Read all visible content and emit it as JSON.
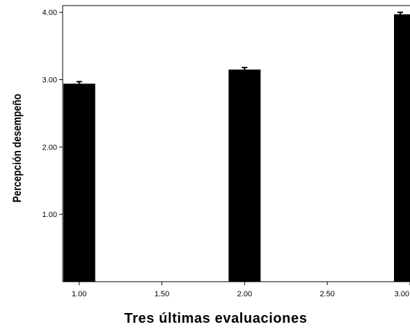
{
  "chart_data": {
    "type": "bar",
    "title": "",
    "xlabel": "Tres últimas evaluaciones",
    "ylabel": "Percepción desempeño",
    "x": [
      1.0,
      2.0,
      3.0
    ],
    "values": [
      2.94,
      3.15,
      3.97
    ],
    "error_upper": [
      2.97,
      3.18,
      4.0
    ],
    "xlim": [
      0.9,
      3.0
    ],
    "ylim": [
      0,
      4.1
    ],
    "x_ticks": [
      1.0,
      1.5,
      2.0,
      2.5,
      3.0
    ],
    "x_tick_labels": [
      "1.00",
      "1.50",
      "2.00",
      "2.50",
      "3.00"
    ],
    "y_ticks": [
      1.0,
      2.0,
      3.0,
      4.0
    ],
    "y_tick_labels": [
      "1.00",
      "2.00",
      "3.00",
      "4.00"
    ],
    "bar_color": "#000000",
    "grid": false,
    "legend": "none"
  }
}
